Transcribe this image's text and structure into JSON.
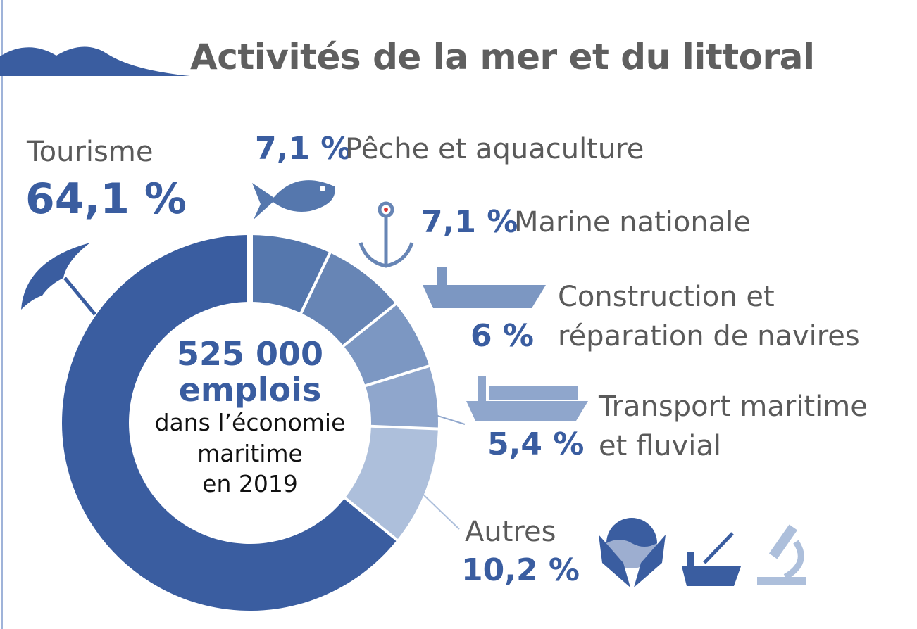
{
  "title": "Activités de la mer et du littoral",
  "center": {
    "total": "525 000",
    "unit": "emplois",
    "line1": "dans l’économie",
    "line2": "maritime",
    "line3": "en 2019"
  },
  "chart_data": {
    "type": "pie",
    "title": "Activités de la mer et du littoral",
    "donut": true,
    "start": "top, clockwise",
    "slices": [
      {
        "label": "Pêche et aquaculture",
        "value": 7.1,
        "value_label": "7,1 %",
        "color": "#5577ad",
        "icon": "fish-icon"
      },
      {
        "label": "Marine nationale",
        "value": 7.1,
        "value_label": "7,1 %",
        "color": "#6785b5",
        "icon": "anchor-icon"
      },
      {
        "label_lines": [
          "Construction et",
          "réparation de navires"
        ],
        "label": "Construction et réparation de navires",
        "value": 6,
        "value_label": "6 %",
        "color": "#7c97c2",
        "icon": "aircraft-carrier-icon"
      },
      {
        "label_lines": [
          "Transport maritime",
          "et fluvial"
        ],
        "label": "Transport maritime et fluvial",
        "value": 5.4,
        "value_label": "5,4 %",
        "color": "#8fa6cc",
        "icon": "container-ship-icon"
      },
      {
        "label": "Autres",
        "value": 10.2,
        "value_label": "10,2 %",
        "color": "#adbfdb",
        "icon": "ocean-hands-icon"
      },
      {
        "label": "Tourisme",
        "value": 64.1,
        "value_label": "64,1 %",
        "color": "#3a5da0",
        "icon": "umbrella-icon"
      }
    ]
  }
}
